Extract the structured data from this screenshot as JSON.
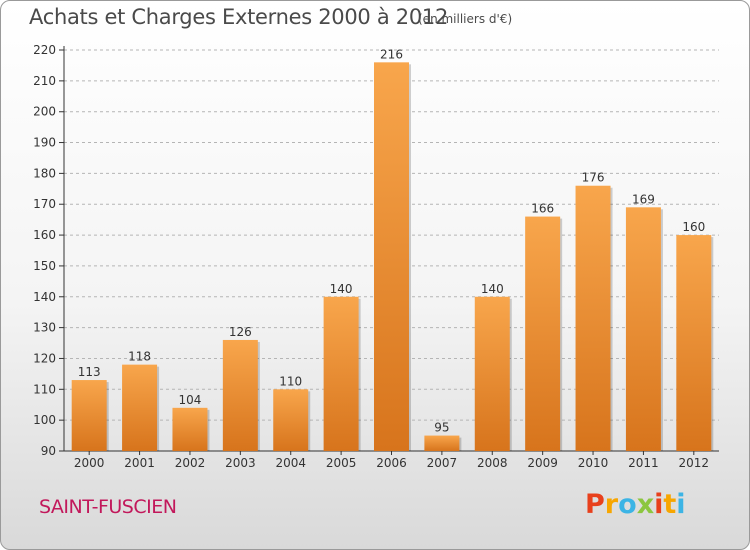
{
  "header": {
    "title": "Achats et Charges Externes 2000 à 2012",
    "unit": "(en milliers d'€)"
  },
  "footer": {
    "place": "SAINT-FUSCIEN",
    "logo": "Proxiti",
    "logo_colors": [
      "#e8401c",
      "#f7a600",
      "#3cb4e5",
      "#8cc63f",
      "#e8401c",
      "#f7a600",
      "#3cb4e5"
    ]
  },
  "colors": {
    "bar_light": "#f8a64c",
    "bar_dark": "#d7741c",
    "grid": "#b5b5b5",
    "axis": "#333333",
    "title": "#4a4a4a",
    "place": "#c2185b"
  },
  "chart_data": {
    "type": "bar",
    "categories": [
      "2000",
      "2001",
      "2002",
      "2003",
      "2004",
      "2005",
      "2006",
      "2007",
      "2008",
      "2009",
      "2010",
      "2011",
      "2012"
    ],
    "values": [
      113,
      118,
      104,
      126,
      110,
      140,
      216,
      95,
      140,
      166,
      176,
      169,
      160
    ],
    "ylim": [
      90,
      220
    ],
    "yticks": [
      90,
      100,
      110,
      120,
      130,
      140,
      150,
      160,
      170,
      180,
      190,
      200,
      210,
      220
    ],
    "grid": true,
    "data_labels": true
  }
}
